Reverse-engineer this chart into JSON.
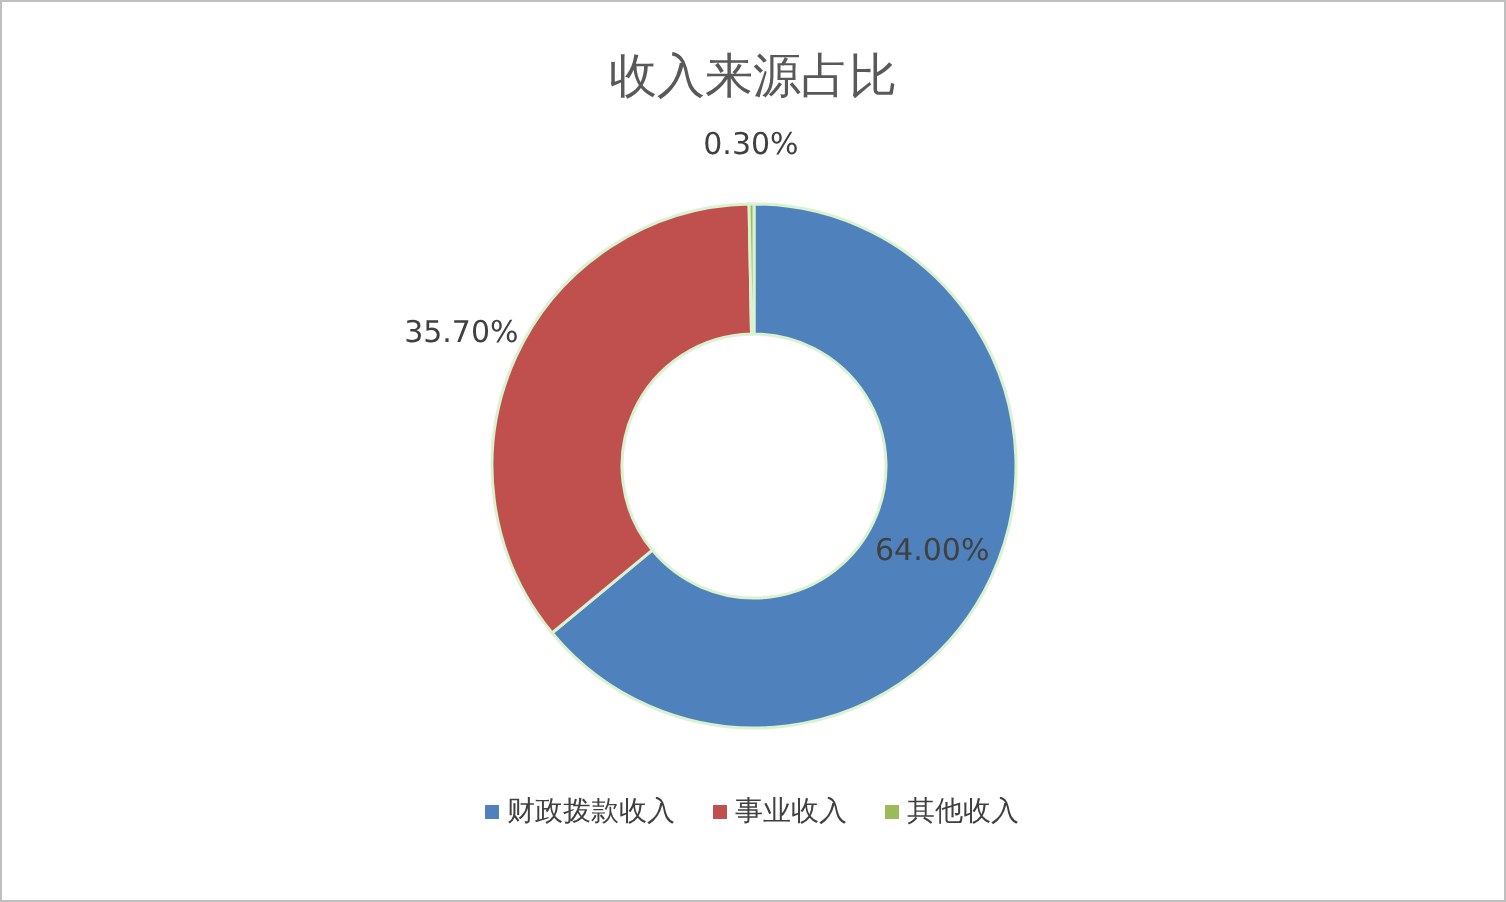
{
  "chart_data": {
    "type": "donut",
    "title": "收入来源占比",
    "categories": [
      "财政拨款收入",
      "事业收入",
      "其他收入"
    ],
    "values": [
      64.0,
      35.7,
      0.3
    ],
    "value_labels": [
      "64.00%",
      "35.70%",
      "0.30%"
    ],
    "colors": [
      "#4f81bd",
      "#c0504d",
      "#9bbb59"
    ],
    "legend": "bottom"
  }
}
